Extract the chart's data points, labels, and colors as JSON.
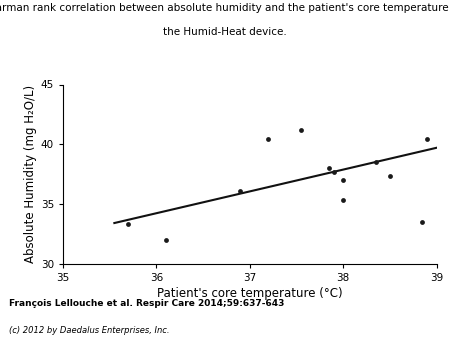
{
  "title_line1": "Spearman rank correlation between absolute humidity and the patient's core temperature with",
  "title_line2": "the Humid-Heat device.",
  "xlabel": "Patient's core temperature (°C)",
  "ylabel": "Absolute Humidity (mg H₂O/L)",
  "xlim": [
    35,
    39
  ],
  "ylim": [
    30,
    45
  ],
  "xticks": [
    35,
    36,
    37,
    38,
    39
  ],
  "yticks": [
    30,
    35,
    40,
    45
  ],
  "scatter_x": [
    35.7,
    36.1,
    36.9,
    37.2,
    37.55,
    37.85,
    37.9,
    38.0,
    38.0,
    38.35,
    38.5,
    38.85,
    38.9
  ],
  "scatter_y": [
    33.3,
    32.0,
    36.1,
    40.4,
    41.2,
    38.0,
    37.7,
    37.0,
    35.3,
    38.5,
    37.3,
    33.5,
    40.4
  ],
  "line_x": [
    35.55,
    39.0
  ],
  "line_y": [
    33.4,
    39.7
  ],
  "scatter_color": "#1a1a1a",
  "line_color": "#111111",
  "bg_color": "#ffffff",
  "citation": "François Lellouche et al. Respir Care 2014;59:637-643",
  "footnote": "(c) 2012 by Daedalus Enterprises, Inc.",
  "title_fontsize": 7.5,
  "axis_label_fontsize": 8.5,
  "tick_fontsize": 7.5,
  "citation_fontsize": 6.5,
  "footnote_fontsize": 6.0
}
